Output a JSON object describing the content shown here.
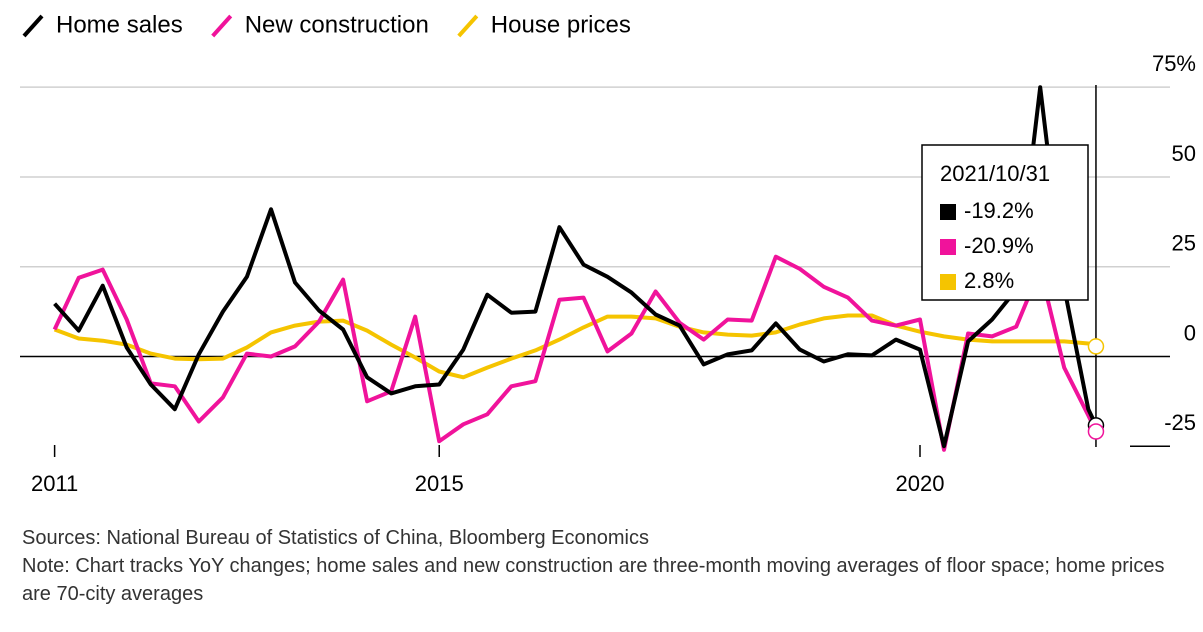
{
  "chart_data": {
    "type": "line",
    "x": [
      2011,
      2011.25,
      2011.5,
      2011.75,
      2012,
      2012.25,
      2012.5,
      2012.75,
      2013,
      2013.25,
      2013.5,
      2013.75,
      2014,
      2014.25,
      2014.5,
      2014.75,
      2015,
      2015.25,
      2015.5,
      2015.75,
      2016,
      2016.25,
      2016.5,
      2016.75,
      2017,
      2017.25,
      2017.5,
      2017.75,
      2018,
      2018.25,
      2018.5,
      2018.75,
      2019,
      2019.25,
      2019.5,
      2019.75,
      2020,
      2020.25,
      2020.5,
      2020.75,
      2021,
      2021.25,
      2021.5,
      2021.75,
      2021.83
    ],
    "series": [
      {
        "name": "Home sales",
        "color": "#000000",
        "values": [
          14.7,
          7.2,
          19.7,
          2.5,
          -7.8,
          -14.7,
          0.6,
          12.5,
          22.2,
          41,
          20.6,
          12.8,
          7.5,
          -5.8,
          -10.3,
          -8.3,
          -7.8,
          1.9,
          17.2,
          12.2,
          12.5,
          36,
          25.6,
          22.2,
          17.8,
          11.7,
          8.6,
          -2.2,
          0.6,
          1.7,
          9.2,
          1.9,
          -1.4,
          0.6,
          0.3,
          4.7,
          1.9,
          -25,
          4.2,
          10.3,
          18.6,
          75,
          19.2,
          -14.7,
          -19.2
        ],
        "value_labels": [
          null,
          null,
          null,
          null,
          null,
          null,
          null,
          null,
          null,
          null,
          null,
          null,
          null,
          null,
          null,
          null,
          null,
          null,
          null,
          null,
          null,
          null,
          null,
          null,
          null,
          null,
          null,
          null,
          null,
          null,
          null,
          null,
          null,
          null,
          null,
          null,
          null,
          null,
          null,
          null,
          null,
          null,
          null,
          null,
          "-19.2%"
        ]
      },
      {
        "name": "New construction",
        "color": "#f0139b",
        "values": [
          7.5,
          21.9,
          24.2,
          10.3,
          -7.5,
          -8.3,
          -18.1,
          -11.4,
          0.8,
          0,
          2.8,
          9.7,
          21.4,
          -12.5,
          -9.7,
          11.1,
          -23.6,
          -18.9,
          -16.1,
          -8.3,
          -6.9,
          15.8,
          16.4,
          1.4,
          6.4,
          18.1,
          9.4,
          4.7,
          10.3,
          10,
          27.8,
          24.4,
          19.4,
          16.4,
          10,
          8.6,
          10.3,
          -26,
          6.4,
          5.6,
          8.3,
          24.4,
          -3.1,
          -16.4,
          -20.9
        ],
        "value_labels": [
          null,
          null,
          null,
          null,
          null,
          null,
          null,
          null,
          null,
          null,
          null,
          null,
          null,
          null,
          null,
          null,
          null,
          null,
          null,
          null,
          null,
          null,
          null,
          null,
          null,
          null,
          null,
          null,
          null,
          null,
          null,
          null,
          null,
          null,
          null,
          null,
          null,
          null,
          null,
          null,
          null,
          null,
          null,
          null,
          "-20.9%"
        ]
      },
      {
        "name": "House prices",
        "color": "#f5c400",
        "values": [
          7.5,
          5,
          4.4,
          3.3,
          0.8,
          -0.6,
          -0.8,
          -0.6,
          2.5,
          6.7,
          8.6,
          9.7,
          10,
          7.2,
          3.3,
          -0.3,
          -4.2,
          -5.8,
          -3.1,
          -0.6,
          1.7,
          4.7,
          8.1,
          11.1,
          11.1,
          10.6,
          8.3,
          6.7,
          6.1,
          5.8,
          6.7,
          8.9,
          10.6,
          11.4,
          11.4,
          8.6,
          6.9,
          5.6,
          4.7,
          4.2,
          4.2,
          4.2,
          4.2,
          3.6,
          2.8
        ],
        "value_labels": [
          null,
          null,
          null,
          null,
          null,
          null,
          null,
          null,
          null,
          null,
          null,
          null,
          null,
          null,
          null,
          null,
          null,
          null,
          null,
          null,
          null,
          null,
          null,
          null,
          null,
          null,
          null,
          null,
          null,
          null,
          null,
          null,
          null,
          null,
          null,
          null,
          null,
          null,
          null,
          null,
          null,
          null,
          null,
          null,
          "2.8%"
        ]
      }
    ],
    "tooltip_date": "2021/10/31",
    "xlim": [
      2010.64,
      2022.6
    ],
    "xticks": [
      2011,
      2015,
      2020
    ],
    "ylim": [
      -28,
      77
    ],
    "yticks": [
      -25,
      0,
      25,
      50,
      {
        "value": 75,
        "label": "75%"
      }
    ],
    "grid": true,
    "sources": "Sources: National Bureau of Statistics of China, Bloomberg Economics",
    "note": "Note: Chart tracks YoY changes; home sales and new construction are three-month moving averages of floor space; home prices are 70-city averages"
  }
}
